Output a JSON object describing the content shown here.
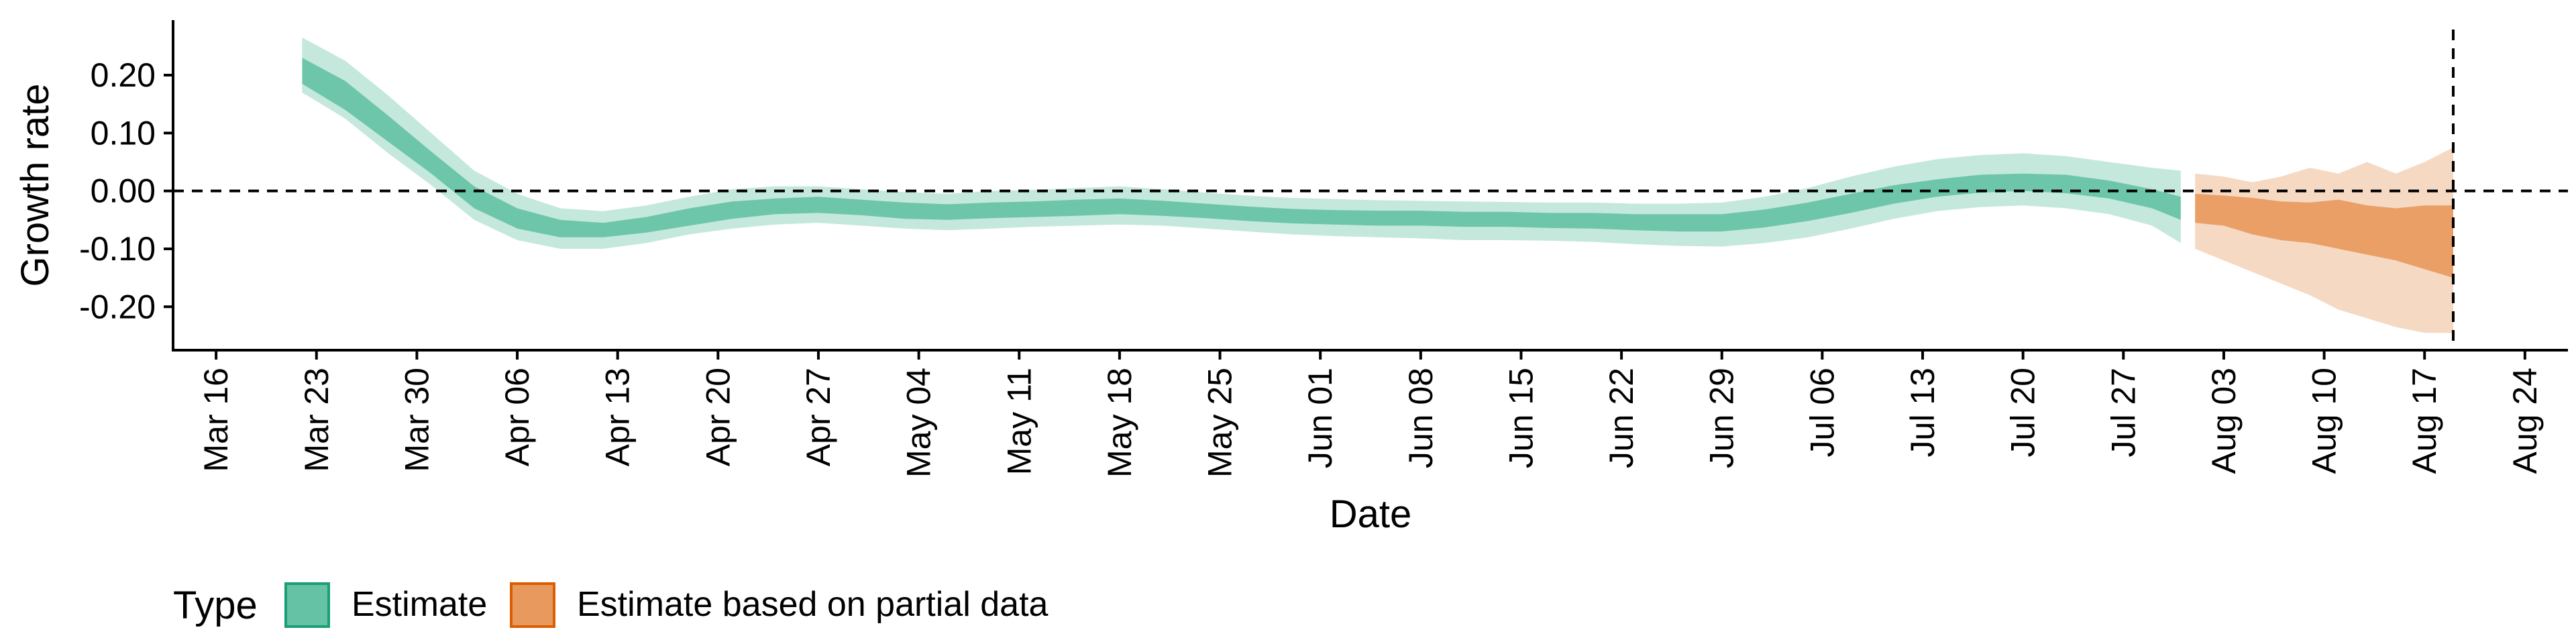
{
  "chart_data": {
    "type": "area",
    "xlabel": "Date",
    "ylabel": "Growth rate",
    "x_domain": [
      "2020-03-13",
      "2020-08-27"
    ],
    "ylim": [
      -0.275,
      0.295
    ],
    "x_ticks": [
      "2020-03-16",
      "2020-03-23",
      "2020-03-30",
      "2020-04-06",
      "2020-04-13",
      "2020-04-20",
      "2020-04-27",
      "2020-05-04",
      "2020-05-11",
      "2020-05-18",
      "2020-05-25",
      "2020-06-01",
      "2020-06-08",
      "2020-06-15",
      "2020-06-22",
      "2020-06-29",
      "2020-07-06",
      "2020-07-13",
      "2020-07-20",
      "2020-07-27",
      "2020-08-03",
      "2020-08-10",
      "2020-08-17",
      "2020-08-24"
    ],
    "x_tick_labels": [
      "Mar 16",
      "Mar 23",
      "Mar 30",
      "Apr 06",
      "Apr 13",
      "Apr 20",
      "Apr 27",
      "May 04",
      "May 11",
      "May 18",
      "May 25",
      "Jun 01",
      "Jun 08",
      "Jun 15",
      "Jun 22",
      "Jun 29",
      "Jul 06",
      "Jul 13",
      "Jul 20",
      "Jul 27",
      "Aug 03",
      "Aug 10",
      "Aug 17",
      "Aug 24"
    ],
    "y_ticks": [
      0.2,
      0.1,
      0.0,
      -0.1,
      -0.2
    ],
    "y_tick_labels": [
      "0.20",
      "0.10",
      "0.00",
      "-0.10",
      "-0.20"
    ],
    "hline_y": 0,
    "vline_x": "2020-08-19",
    "legend": {
      "title": "Type",
      "position": "bottom-left",
      "items": [
        {
          "label": "Estimate",
          "fill": "#66c2a5",
          "stroke": "#1b9e77"
        },
        {
          "label": "Estimate based on partial data",
          "fill": "#e89a5e",
          "stroke": "#d95f02"
        }
      ]
    },
    "series": [
      {
        "name": "Estimate",
        "color": "#66c2a5",
        "x": [
          "2020-03-22",
          "2020-03-25",
          "2020-03-28",
          "2020-03-31",
          "2020-04-03",
          "2020-04-06",
          "2020-04-09",
          "2020-04-12",
          "2020-04-15",
          "2020-04-18",
          "2020-04-21",
          "2020-04-24",
          "2020-04-27",
          "2020-04-30",
          "2020-05-03",
          "2020-05-06",
          "2020-05-09",
          "2020-05-12",
          "2020-05-15",
          "2020-05-18",
          "2020-05-21",
          "2020-05-24",
          "2020-05-27",
          "2020-05-30",
          "2020-06-02",
          "2020-06-05",
          "2020-06-08",
          "2020-06-11",
          "2020-06-14",
          "2020-06-17",
          "2020-06-20",
          "2020-06-23",
          "2020-06-26",
          "2020-06-29",
          "2020-07-02",
          "2020-07-05",
          "2020-07-08",
          "2020-07-11",
          "2020-07-14",
          "2020-07-17",
          "2020-07-20",
          "2020-07-23",
          "2020-07-26",
          "2020-07-29",
          "2020-07-31"
        ],
        "lower90": [
          0.17,
          0.125,
          0.065,
          0.01,
          -0.05,
          -0.085,
          -0.1,
          -0.1,
          -0.09,
          -0.075,
          -0.065,
          -0.058,
          -0.055,
          -0.06,
          -0.065,
          -0.068,
          -0.065,
          -0.062,
          -0.06,
          -0.058,
          -0.06,
          -0.065,
          -0.07,
          -0.075,
          -0.078,
          -0.08,
          -0.082,
          -0.085,
          -0.085,
          -0.086,
          -0.088,
          -0.092,
          -0.095,
          -0.096,
          -0.09,
          -0.08,
          -0.065,
          -0.048,
          -0.035,
          -0.028,
          -0.025,
          -0.03,
          -0.04,
          -0.06,
          -0.09
        ],
        "lower50": [
          0.185,
          0.14,
          0.085,
          0.03,
          -0.03,
          -0.065,
          -0.08,
          -0.08,
          -0.072,
          -0.06,
          -0.048,
          -0.04,
          -0.038,
          -0.042,
          -0.048,
          -0.05,
          -0.047,
          -0.045,
          -0.043,
          -0.04,
          -0.043,
          -0.047,
          -0.052,
          -0.056,
          -0.058,
          -0.06,
          -0.06,
          -0.062,
          -0.062,
          -0.064,
          -0.065,
          -0.068,
          -0.07,
          -0.07,
          -0.063,
          -0.052,
          -0.038,
          -0.022,
          -0.01,
          -0.003,
          0.0,
          -0.004,
          -0.013,
          -0.03,
          -0.05
        ],
        "upper50": [
          0.23,
          0.19,
          0.13,
          0.068,
          0.008,
          -0.03,
          -0.05,
          -0.055,
          -0.045,
          -0.03,
          -0.018,
          -0.013,
          -0.01,
          -0.015,
          -0.02,
          -0.023,
          -0.02,
          -0.018,
          -0.015,
          -0.013,
          -0.017,
          -0.022,
          -0.027,
          -0.031,
          -0.033,
          -0.034,
          -0.034,
          -0.036,
          -0.036,
          -0.038,
          -0.038,
          -0.04,
          -0.04,
          -0.04,
          -0.032,
          -0.02,
          -0.005,
          0.01,
          0.02,
          0.028,
          0.03,
          0.028,
          0.018,
          0.003,
          -0.01
        ],
        "upper90": [
          0.265,
          0.225,
          0.165,
          0.1,
          0.035,
          -0.005,
          -0.03,
          -0.035,
          -0.025,
          -0.01,
          0.003,
          0.008,
          0.008,
          0.003,
          -0.002,
          -0.005,
          0.0,
          0.002,
          0.005,
          0.008,
          0.003,
          -0.003,
          -0.008,
          -0.012,
          -0.014,
          -0.016,
          -0.017,
          -0.018,
          -0.019,
          -0.02,
          -0.02,
          -0.022,
          -0.022,
          -0.02,
          -0.01,
          0.005,
          0.025,
          0.042,
          0.055,
          0.062,
          0.065,
          0.06,
          0.05,
          0.04,
          0.035
        ]
      },
      {
        "name": "Estimate based on partial data",
        "color": "#e89a5e",
        "x": [
          "2020-08-01",
          "2020-08-03",
          "2020-08-05",
          "2020-08-07",
          "2020-08-09",
          "2020-08-11",
          "2020-08-13",
          "2020-08-15",
          "2020-08-17",
          "2020-08-19"
        ],
        "lower90": [
          -0.1,
          -0.12,
          -0.14,
          -0.16,
          -0.18,
          -0.205,
          -0.22,
          -0.235,
          -0.245,
          -0.245
        ],
        "lower50": [
          -0.055,
          -0.06,
          -0.075,
          -0.085,
          -0.09,
          -0.1,
          -0.11,
          -0.12,
          -0.135,
          -0.15
        ],
        "upper50": [
          -0.005,
          -0.008,
          -0.012,
          -0.018,
          -0.02,
          -0.015,
          -0.025,
          -0.03,
          -0.025,
          -0.025
        ],
        "upper90": [
          0.03,
          0.025,
          0.015,
          0.025,
          0.04,
          0.03,
          0.05,
          0.03,
          0.05,
          0.075
        ]
      }
    ]
  }
}
